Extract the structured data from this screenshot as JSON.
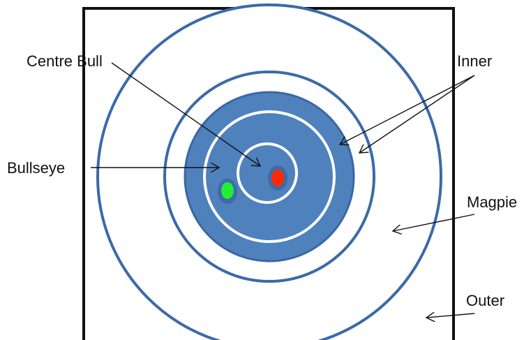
{
  "labels": {
    "centre_bull": "Centre Bull",
    "bullseye": "Bullseye",
    "inner": "Inner",
    "magpie": "Magpie",
    "outer": "Outer"
  },
  "colors": {
    "frame": "#111111",
    "ring_outline": "#3b6aa8",
    "inner_fill": "#4f81bd",
    "inner_fill_edge": "#3a67a3",
    "white_ring": "#ffffff",
    "shot_red": "#ff2a00",
    "shot_green": "#22ee33",
    "shot_ring": "#4a6fa5",
    "arrow": "#111111"
  }
}
